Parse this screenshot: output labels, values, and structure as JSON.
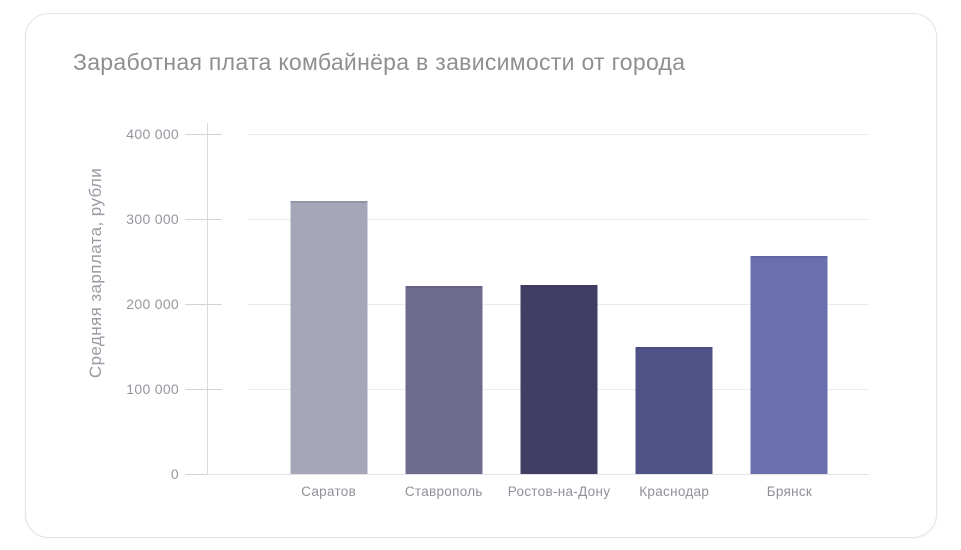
{
  "chart_data": {
    "type": "bar",
    "title": "Заработная плата комбайнёра в зависимости от города",
    "ylabel": "Средняя зарплата, рубли",
    "xlabel": "",
    "categories": [
      "Саратов",
      "Ставрополь",
      "Ростов-на-Дону",
      "Краснодар",
      "Брянск"
    ],
    "values": [
      321000,
      221000,
      222000,
      150000,
      256000
    ],
    "bar_colors": [
      "#a6a6b9",
      "#6e6c8e",
      "#403e63",
      "#4f5287",
      "#6a6fae"
    ],
    "ylim": [
      0,
      400000
    ],
    "yticks": [
      {
        "value": 0,
        "label": "0"
      },
      {
        "value": 100000,
        "label": "100 000"
      },
      {
        "value": 200000,
        "label": "200 000"
      },
      {
        "value": 300000,
        "label": "300 000"
      },
      {
        "value": 400000,
        "label": "400 000"
      }
    ],
    "grid": "on",
    "legend": "none"
  },
  "colors": {
    "background": "#ffffff",
    "card_border": "#e3e3e8",
    "grid": "#ebebef",
    "axis": "#d9d9de",
    "tick": "#d2d2d8",
    "title_text": "#8f8f8f",
    "label_text": "#96969f"
  }
}
